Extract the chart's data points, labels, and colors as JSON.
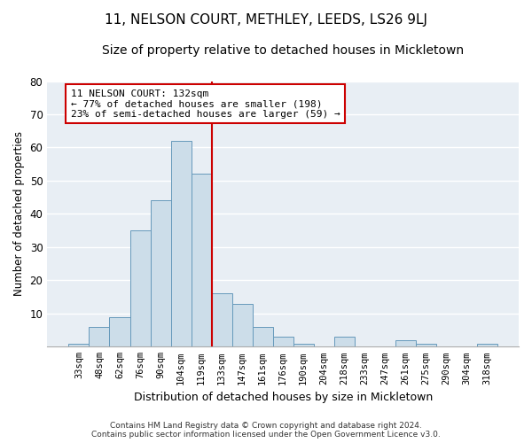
{
  "title_line1": "11, NELSON COURT, METHLEY, LEEDS, LS26 9LJ",
  "title_line2": "Size of property relative to detached houses in Mickletown",
  "xlabel": "Distribution of detached houses by size in Mickletown",
  "ylabel": "Number of detached properties",
  "categories": [
    "33sqm",
    "48sqm",
    "62sqm",
    "76sqm",
    "90sqm",
    "104sqm",
    "119sqm",
    "133sqm",
    "147sqm",
    "161sqm",
    "176sqm",
    "190sqm",
    "204sqm",
    "218sqm",
    "233sqm",
    "247sqm",
    "261sqm",
    "275sqm",
    "290sqm",
    "304sqm",
    "318sqm"
  ],
  "values": [
    1,
    6,
    9,
    35,
    44,
    62,
    52,
    16,
    13,
    6,
    3,
    1,
    0,
    3,
    0,
    0,
    2,
    1,
    0,
    0,
    1
  ],
  "bar_color": "#ccdde9",
  "bar_edge_color": "#6699bb",
  "annotation_text": "11 NELSON COURT: 132sqm\n← 77% of detached houses are smaller (198)\n23% of semi-detached houses are larger (59) →",
  "annotation_box_color": "#ffffff",
  "annotation_box_edge": "#cc0000",
  "marker_line_color": "#cc0000",
  "ylim": [
    0,
    80
  ],
  "yticks": [
    0,
    10,
    20,
    30,
    40,
    50,
    60,
    70,
    80
  ],
  "background_color": "#e8eef4",
  "footnote": "Contains HM Land Registry data © Crown copyright and database right 2024.\nContains public sector information licensed under the Open Government Licence v3.0.",
  "title_fontsize": 11,
  "subtitle_fontsize": 10,
  "xlabel_fontsize": 9,
  "ylabel_fontsize": 8.5
}
